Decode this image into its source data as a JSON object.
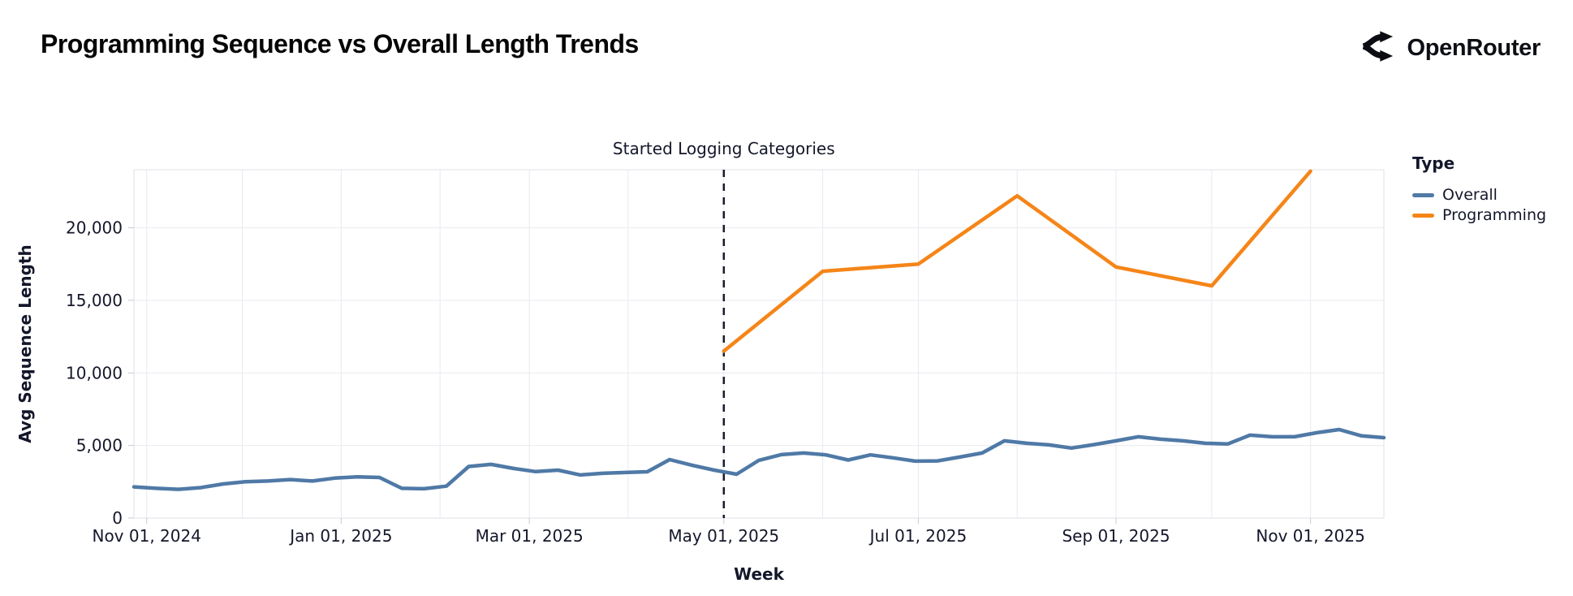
{
  "header": {
    "title": "Programming Sequence vs Overall Length Trends",
    "logo_text": "OpenRouter",
    "logo_icon": "openrouter-fork-icon"
  },
  "chart_data": {
    "type": "line",
    "xlabel": "Week",
    "ylabel": "Avg Sequence Length",
    "ylim": [
      0,
      24000
    ],
    "grid": true,
    "background": "#ffffff",
    "gridline_color": "#e9e9f0",
    "axis_text_color": "#14172a",
    "y_ticks": [
      0,
      5000,
      10000,
      15000,
      20000
    ],
    "y_tick_labels": [
      "0",
      "5,000",
      "10,000",
      "15,000",
      "20,000"
    ],
    "x_domain": [
      "2024-10-28",
      "2025-11-24"
    ],
    "x_tick_labels": [
      "Nov 01, 2024",
      "Jan 01, 2025",
      "Mar 01, 2025",
      "May 01, 2025",
      "Jul 01, 2025",
      "Sep 01, 2025",
      "Nov 01, 2025"
    ],
    "annotation": {
      "label": "Started Logging Categories",
      "x": "2025-05-01",
      "style": "dashed-vertical",
      "color": "#181b2c"
    },
    "legend": {
      "title": "Type",
      "position": "right",
      "entries": [
        {
          "label": "Overall",
          "color": "#4f79a6"
        },
        {
          "label": "Programming",
          "color": "#f58518"
        }
      ]
    },
    "series": [
      {
        "name": "Overall",
        "color": "#4f79a6",
        "x": [
          "2024-10-28",
          "2024-11-04",
          "2024-11-11",
          "2024-11-18",
          "2024-11-25",
          "2024-12-02",
          "2024-12-09",
          "2024-12-16",
          "2024-12-23",
          "2024-12-30",
          "2025-01-06",
          "2025-01-13",
          "2025-01-20",
          "2025-01-27",
          "2025-02-03",
          "2025-02-10",
          "2025-02-17",
          "2025-02-24",
          "2025-03-03",
          "2025-03-10",
          "2025-03-17",
          "2025-03-24",
          "2025-03-31",
          "2025-04-07",
          "2025-04-14",
          "2025-04-21",
          "2025-04-28",
          "2025-05-05",
          "2025-05-12",
          "2025-05-19",
          "2025-05-26",
          "2025-06-02",
          "2025-06-09",
          "2025-06-16",
          "2025-06-23",
          "2025-06-30",
          "2025-07-07",
          "2025-07-14",
          "2025-07-21",
          "2025-07-28",
          "2025-08-04",
          "2025-08-11",
          "2025-08-18",
          "2025-08-25",
          "2025-09-01",
          "2025-09-08",
          "2025-09-15",
          "2025-09-22",
          "2025-09-29",
          "2025-10-06",
          "2025-10-13",
          "2025-10-20",
          "2025-10-27",
          "2025-11-03",
          "2025-11-10",
          "2025-11-17",
          "2025-11-24"
        ],
        "values": [
          2150,
          2050,
          1980,
          2100,
          2350,
          2500,
          2550,
          2650,
          2550,
          2750,
          2840,
          2800,
          2050,
          2020,
          2200,
          3550,
          3700,
          3420,
          3200,
          3300,
          2970,
          3080,
          3140,
          3190,
          4030,
          3640,
          3300,
          3020,
          3980,
          4370,
          4480,
          4350,
          4000,
          4350,
          4150,
          3920,
          3940,
          4200,
          4480,
          5320,
          5150,
          5040,
          4820,
          5060,
          5320,
          5600,
          5430,
          5320,
          5150,
          5100,
          5710,
          5600,
          5600,
          5880,
          6100,
          5660,
          5540
        ]
      },
      {
        "name": "Programming",
        "color": "#f58518",
        "x": [
          "2025-05-01",
          "2025-06-01",
          "2025-07-01",
          "2025-08-01",
          "2025-09-01",
          "2025-10-01",
          "2025-11-01"
        ],
        "values": [
          11500,
          17000,
          17500,
          22200,
          17300,
          16000,
          23900
        ]
      }
    ]
  }
}
